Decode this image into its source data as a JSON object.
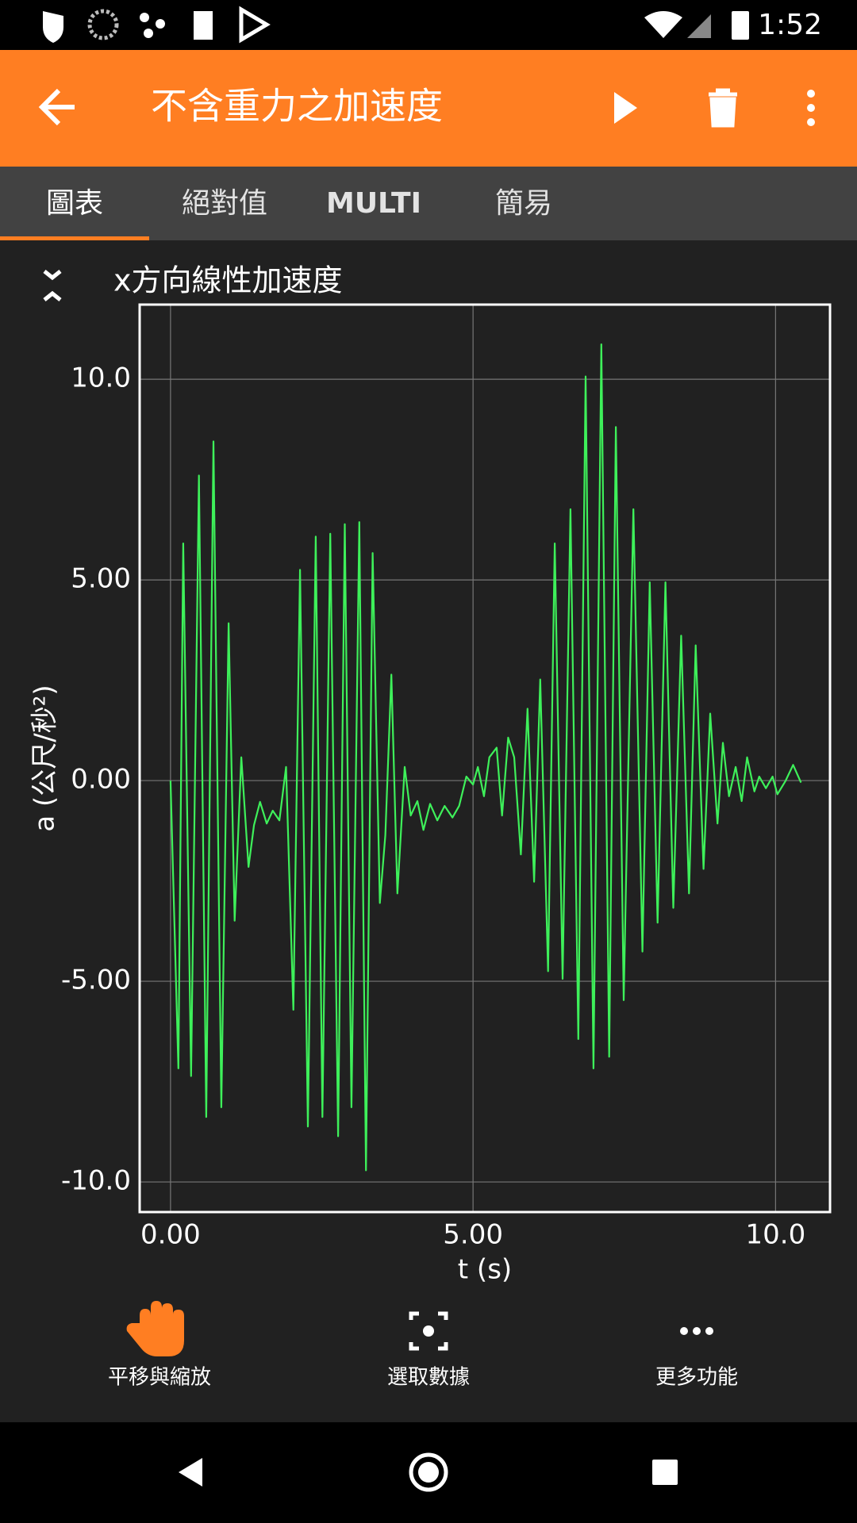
{
  "status_bar": {
    "time": "1:52"
  },
  "app_bar": {
    "title": "不含重力之加速度"
  },
  "tabs": [
    "圖表",
    "絕對值",
    "MULTI",
    "簡易"
  ],
  "toolbar": [
    "平移與縮放",
    "選取數據",
    "更多功能"
  ],
  "chart_data": {
    "type": "line",
    "title": "x方向線性加速度",
    "x_label": "t (s)",
    "y_label": "a (公尺/秒²)",
    "color": "#3ef05a",
    "grid": true,
    "xlim": [
      -0.51,
      10.9
    ],
    "ylim": [
      -10.75,
      11.86
    ],
    "xticks": [
      {
        "value": 0,
        "label": "0.00"
      },
      {
        "value": 5,
        "label": "5.00"
      },
      {
        "value": 10,
        "label": "10.0"
      }
    ],
    "yticks": [
      {
        "value": -10,
        "label": "-10.0"
      },
      {
        "value": -5,
        "label": "-5.00"
      },
      {
        "value": 0,
        "label": "0.00"
      },
      {
        "value": 5,
        "label": "5.00"
      },
      {
        "value": 10,
        "label": "10.0"
      }
    ],
    "x": [
      0.0,
      0.13,
      0.21,
      0.34,
      0.47,
      0.59,
      0.71,
      0.84,
      0.96,
      1.06,
      1.17,
      1.29,
      1.38,
      1.48,
      1.59,
      1.69,
      1.8,
      1.91,
      2.03,
      2.14,
      2.27,
      2.4,
      2.51,
      2.64,
      2.77,
      2.88,
      2.99,
      3.12,
      3.23,
      3.34,
      3.46,
      3.55,
      3.65,
      3.75,
      3.87,
      3.97,
      4.08,
      4.18,
      4.29,
      4.41,
      4.53,
      4.66,
      4.77,
      4.89,
      5.0,
      5.08,
      5.18,
      5.27,
      5.39,
      5.48,
      5.58,
      5.68,
      5.79,
      5.9,
      6.01,
      6.11,
      6.24,
      6.35,
      6.48,
      6.61,
      6.74,
      6.86,
      6.99,
      7.12,
      7.25,
      7.36,
      7.49,
      7.65,
      7.8,
      7.92,
      8.05,
      8.18,
      8.31,
      8.44,
      8.57,
      8.68,
      8.81,
      8.92,
      9.04,
      9.13,
      9.23,
      9.34,
      9.44,
      9.53,
      9.65,
      9.73,
      9.84,
      9.95,
      10.03,
      10.16,
      10.29,
      10.42
    ],
    "values": [
      0.0,
      -7.17,
      5.91,
      -7.36,
      7.6,
      -8.38,
      8.45,
      -8.14,
      3.92,
      -3.49,
      0.58,
      -2.15,
      -1.11,
      -0.53,
      -1.07,
      -0.75,
      -0.99,
      0.34,
      -5.71,
      5.25,
      -8.62,
      6.08,
      -8.38,
      6.15,
      -8.86,
      6.39,
      -8.14,
      6.44,
      -9.71,
      5.67,
      -3.05,
      -1.36,
      2.64,
      -2.81,
      0.34,
      -0.87,
      -0.51,
      -1.23,
      -0.58,
      -0.99,
      -0.63,
      -0.92,
      -0.63,
      0.1,
      -0.1,
      0.34,
      -0.39,
      0.58,
      0.82,
      -0.87,
      1.07,
      0.58,
      -1.84,
      1.79,
      -2.52,
      2.52,
      -4.75,
      5.91,
      -4.94,
      6.76,
      -6.44,
      10.07,
      -7.17,
      10.87,
      -6.88,
      8.81,
      -5.47,
      6.76,
      -4.26,
      4.94,
      -3.54,
      4.94,
      -3.17,
      3.61,
      -2.81,
      3.37,
      -2.2,
      1.67,
      -1.07,
      0.94,
      -0.39,
      0.34,
      -0.51,
      0.58,
      -0.27,
      0.1,
      -0.19,
      0.1,
      -0.34,
      -0.02,
      0.39,
      -0.05
    ]
  }
}
